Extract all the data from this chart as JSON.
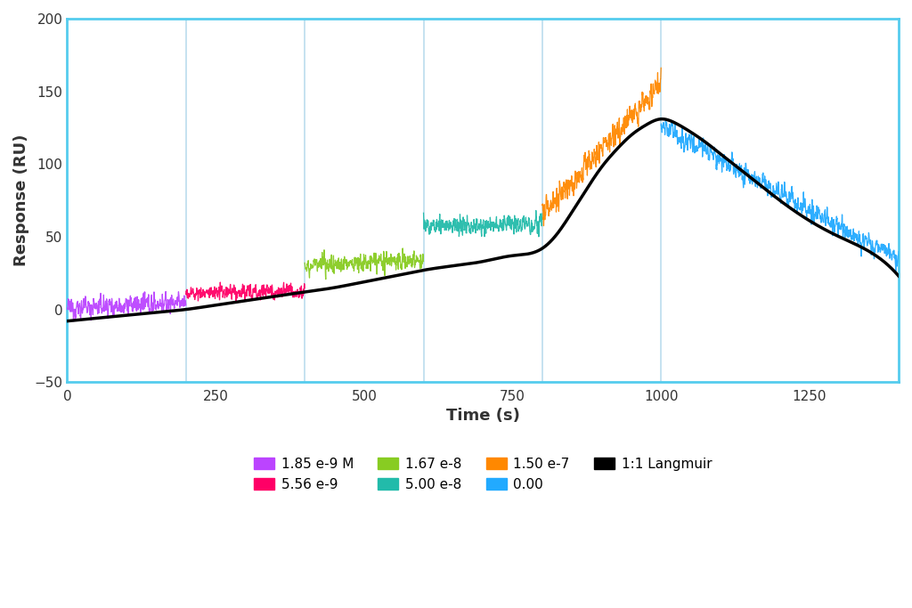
{
  "title": "",
  "xlabel": "Time (s)",
  "ylabel": "Response (RU)",
  "xlim": [
    0,
    1400
  ],
  "ylim": [
    -50,
    200
  ],
  "yticks": [
    -50,
    0,
    50,
    100,
    150,
    200
  ],
  "xticks": [
    0,
    250,
    500,
    750,
    1000,
    1250
  ],
  "background_color": "#ffffff",
  "plot_bg_color": "#ffffff",
  "border_color": "#55ccee",
  "vline_color": "#bbddee",
  "vline_positions": [
    200,
    400,
    600,
    800,
    1000
  ],
  "segments": [
    {
      "label": "1.85 e-9 M",
      "color": "#bb44ff",
      "x_start": 0,
      "x_end": 200,
      "y_mean": 3.0,
      "y_slope": 0.02,
      "noise": 5.5,
      "n": 600
    },
    {
      "label": "5.56 e-9",
      "color": "#ff0066",
      "x_start": 200,
      "x_end": 400,
      "y_mean": 12.0,
      "y_slope": 0.01,
      "noise": 4.5,
      "n": 600
    },
    {
      "label": "1.67 e-8",
      "color": "#88cc22",
      "x_start": 400,
      "x_end": 600,
      "y_mean": 32.0,
      "y_slope": 0.02,
      "noise": 5.0,
      "n": 600
    },
    {
      "label": "5.00 e-8",
      "color": "#22bbaa",
      "x_start": 600,
      "x_end": 800,
      "y_mean": 58.0,
      "y_slope": 0.01,
      "noise": 5.5,
      "n": 600
    },
    {
      "label": "1.50 e-7",
      "color": "#ff8800",
      "x_start": 800,
      "x_end": 1000,
      "y_mean": 110.0,
      "y_slope": 0.45,
      "noise": 7.0,
      "n": 600
    },
    {
      "label": "0.00",
      "color": "#22aaff",
      "x_start": 1000,
      "x_end": 1400,
      "y_mean": 80.0,
      "y_slope": -0.23,
      "noise": 6.0,
      "n": 1000
    }
  ],
  "langmuir_points_x": [
    0,
    50,
    100,
    150,
    200,
    250,
    300,
    350,
    400,
    450,
    500,
    550,
    600,
    650,
    700,
    750,
    800,
    825,
    850,
    875,
    900,
    925,
    950,
    975,
    1000,
    1025,
    1050,
    1075,
    1100,
    1150,
    1200,
    1250,
    1300,
    1350,
    1400
  ],
  "langmuir_points_y": [
    -8,
    -6,
    -4,
    -2,
    0,
    3,
    6,
    9,
    12,
    15,
    19,
    23,
    27,
    30,
    33,
    37,
    42,
    52,
    67,
    83,
    98,
    110,
    120,
    127,
    131,
    128,
    122,
    115,
    107,
    91,
    75,
    61,
    50,
    40,
    23
  ],
  "langmuir_color": "#000000",
  "legend_labels": [
    "1.85 e-9 M",
    "5.56 e-9",
    "1.67 e-8",
    "5.00 e-8",
    "1.50 e-7",
    "0.00",
    "1:1 Langmuir"
  ],
  "legend_colors": [
    "#bb44ff",
    "#ff0066",
    "#88cc22",
    "#22bbaa",
    "#ff8800",
    "#22aaff",
    "#000000"
  ]
}
